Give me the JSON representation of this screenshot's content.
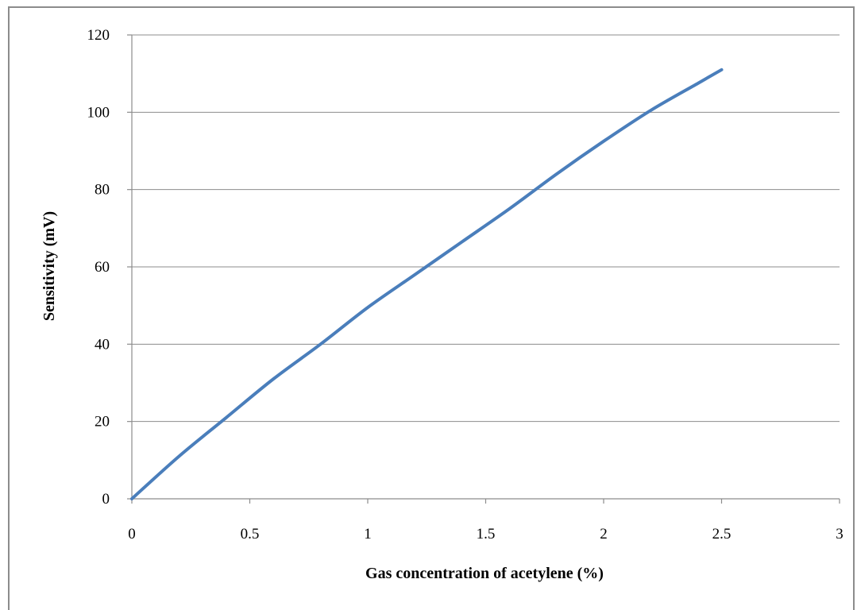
{
  "chart_data": {
    "type": "line",
    "xlabel": "Gas concentration of acetylene (%)",
    "ylabel": "Sensitivity (mV)",
    "xlim": [
      0,
      3
    ],
    "ylim": [
      0,
      120
    ],
    "x_ticks": [
      "0",
      "0.5",
      "1",
      "1.5",
      "2",
      "2.5",
      "3"
    ],
    "y_ticks": [
      "0",
      "20",
      "40",
      "60",
      "80",
      "100",
      "120"
    ],
    "grid": "horizontal",
    "legend": "none",
    "series": [
      {
        "color": "#4a7ebb",
        "x": [
          0,
          0.2,
          0.4,
          0.6,
          0.8,
          1.0,
          1.2,
          1.4,
          1.6,
          1.8,
          2.0,
          2.2,
          2.4,
          2.5
        ],
        "y": [
          0,
          11,
          21,
          31,
          40,
          49.5,
          58,
          66.5,
          75,
          84,
          92.5,
          100.5,
          107.5,
          111
        ]
      }
    ]
  }
}
